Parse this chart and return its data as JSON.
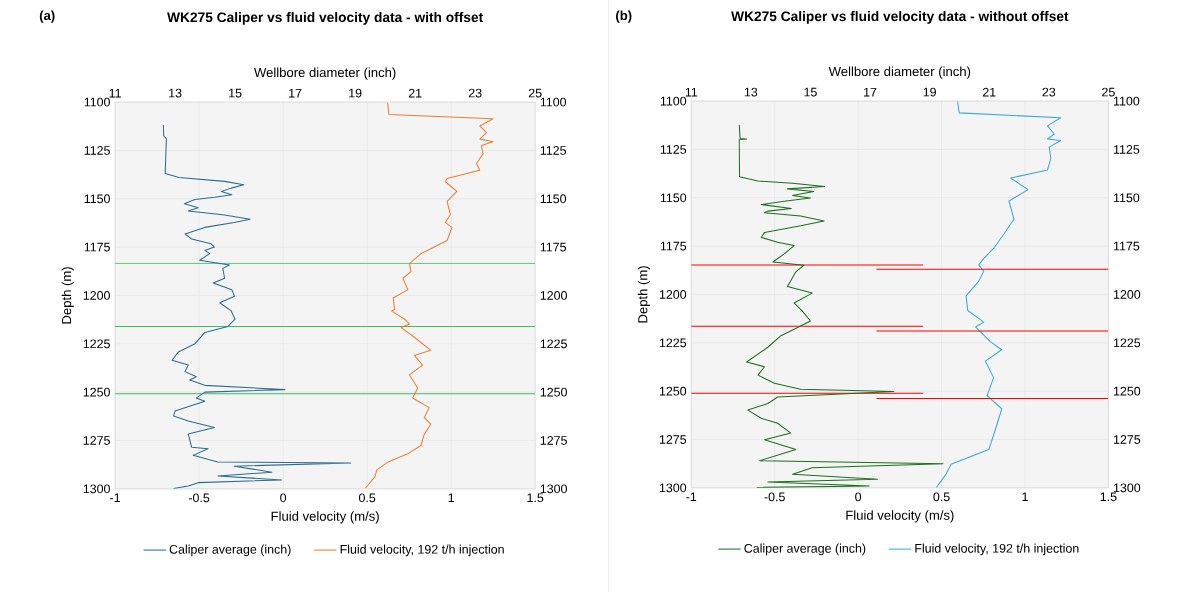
{
  "chart_data": [
    {
      "type": "line",
      "title": "WK275 Caliper vs fluid velocity data - with offset",
      "xlabel": "Fluid velocity (m/s)",
      "x2label": "Wellbore diameter (inch)",
      "ylabel": "Depth (m)",
      "xlim": [
        -1,
        1.5
      ],
      "xticks": [
        -1,
        -0.5,
        0,
        0.5,
        1,
        1.5
      ],
      "x2lim": [
        11,
        25
      ],
      "x2ticks": [
        11,
        13,
        15,
        17,
        19,
        21,
        23,
        25
      ],
      "ylim": [
        1300,
        1100
      ],
      "yticks": [
        1100,
        1125,
        1150,
        1175,
        1200,
        1225,
        1250,
        1275,
        1300
      ],
      "y2lim": [
        1300,
        1100
      ],
      "y2ticks": [
        1100,
        1125,
        1150,
        1175,
        1200,
        1225,
        1250,
        1275,
        1300
      ],
      "grid": true,
      "legend": "bottom",
      "annotations": [
        "(a)"
      ],
      "ref_lines": [
        {
          "axis": "y",
          "value": 1183.4,
          "color": "#3cbf62"
        },
        {
          "axis": "y",
          "value": 1216.1,
          "color": "#3cbf62"
        },
        {
          "axis": "y",
          "value": 1250.8,
          "color": "#3cbf62"
        }
      ],
      "series": [
        {
          "name": "Caliper average (inch)",
          "color": "#2f6b8f",
          "axis": "x2",
          "x": [
            12.61,
            12.62,
            12.71,
            12.67,
            13.13,
            14.65,
            15.29,
            14.87,
            14.54,
            14.89,
            14.32,
            13.66,
            13.31,
            13.77,
            13.44,
            14.65,
            15.5,
            14.97,
            13.99,
            13.33,
            13.55,
            14.2,
            14.31,
            13.99,
            14.15,
            13.82,
            14.81,
            14.59,
            14.65,
            14.27,
            14.89,
            14.98,
            14.49,
            14.87,
            15.0,
            14.76,
            13.99,
            13.66,
            13.11,
            12.9,
            13.44,
            13.33,
            13.71,
            13.49,
            13.99,
            16.66,
            13.99,
            13.71,
            13.99,
            13.0,
            12.95,
            13.44,
            14.31,
            13.44,
            13.55,
            14.1,
            13.6,
            14.42,
            18.85,
            14.97,
            16.23,
            14.43,
            16.55,
            13.77,
            13.44,
            12.95
          ],
          "values": [
            1111.8,
            1117.4,
            1119,
            1136.9,
            1139,
            1141,
            1142.8,
            1144.5,
            1146.2,
            1147.9,
            1149.2,
            1150.4,
            1152.6,
            1154.6,
            1156.3,
            1158.4,
            1160.6,
            1162.3,
            1164.8,
            1168.2,
            1170.8,
            1173.3,
            1175,
            1176.7,
            1178.4,
            1181.8,
            1184.3,
            1186,
            1191.1,
            1193.6,
            1197,
            1200.4,
            1203.8,
            1208,
            1212.3,
            1216,
            1219.1,
            1225,
            1229.2,
            1233.5,
            1236,
            1239.4,
            1242,
            1243.7,
            1246.5,
            1248.7,
            1250,
            1253,
            1254.7,
            1259.8,
            1262.3,
            1264.9,
            1268.3,
            1271.7,
            1278.5,
            1279.3,
            1282.7,
            1286.1,
            1286.6,
            1288.3,
            1291.4,
            1293.4,
            1295.4,
            1296.8,
            1298.5,
            1299.8
          ]
        },
        {
          "name": "Fluid velocity, 192 t/h injection",
          "color": "#ed7d31",
          "x": [
            0.622,
            0.63,
            1.249,
            1.171,
            1.21,
            1.171,
            1.249,
            1.18,
            1.19,
            1.151,
            1.17,
            0.976,
            0.966,
            1.034,
            0.976,
            0.995,
            0.966,
            1.005,
            0.976,
            0.917,
            0.82,
            0.752,
            0.761,
            0.713,
            0.742,
            0.655,
            0.664,
            0.645,
            0.723,
            0.752,
            0.703,
            0.781,
            0.879,
            0.781,
            0.83,
            0.752,
            0.801,
            0.771,
            0.869,
            0.84,
            0.879,
            0.84,
            0.82,
            0.742,
            0.625,
            0.557,
            0.547,
            0.489
          ],
          "values": [
            1100.5,
            1106.4,
            1108.6,
            1112.4,
            1115.8,
            1119.1,
            1120.5,
            1122.5,
            1126.8,
            1131.8,
            1135.2,
            1139.5,
            1141.2,
            1146.2,
            1151.3,
            1158.1,
            1162.3,
            1164.8,
            1171.6,
            1174.2,
            1178.4,
            1183.5,
            1187.7,
            1191.1,
            1197,
            1201.3,
            1207.2,
            1208,
            1212.3,
            1214.8,
            1216.6,
            1221.6,
            1228.4,
            1231,
            1236,
            1241.1,
            1247.9,
            1253,
            1258,
            1263.2,
            1266.6,
            1271.7,
            1277.6,
            1281.9,
            1286.1,
            1290.3,
            1293.7,
            1299.7
          ]
        }
      ]
    },
    {
      "type": "line",
      "title": "WK275 Caliper vs fluid velocity data - without offset",
      "xlabel": "Fluid velocity (m/s)",
      "x2label": "Wellbore diameter (inch)",
      "ylabel": "Depth (m)",
      "xlim": [
        -1,
        1.5
      ],
      "xticks": [
        -1,
        -0.5,
        0,
        0.5,
        1,
        1.5
      ],
      "x2lim": [
        11,
        25
      ],
      "x2ticks": [
        11,
        13,
        15,
        17,
        19,
        21,
        23,
        25
      ],
      "ylim": [
        1300,
        1100
      ],
      "yticks": [
        1100,
        1125,
        1150,
        1175,
        1200,
        1225,
        1250,
        1275,
        1300
      ],
      "y2lim": [
        1300,
        1100
      ],
      "y2ticks": [
        1100,
        1125,
        1150,
        1175,
        1200,
        1225,
        1250,
        1275,
        1300
      ],
      "grid": true,
      "legend": "bottom",
      "annotations": [
        "(b)"
      ],
      "series": [
        {
          "name": "Caliper average (inch)",
          "color": "#1f6e1f",
          "axis": "x2",
          "x": [
            12.61,
            12.64,
            12.86,
            12.61,
            12.62,
            13.24,
            14.4,
            15.47,
            14.23,
            15.11,
            14.4,
            15.0,
            14.12,
            13.35,
            14.36,
            13.57,
            13.46,
            14.67,
            15.46,
            14.67,
            13.46,
            13.35,
            13.9,
            14.45,
            14.12,
            13.74,
            14.78,
            14.51,
            14.23,
            15.06,
            14.45,
            14.73,
            15.0,
            14.67,
            14.01,
            13.57,
            12.86,
            13.46,
            13.24,
            13.79,
            14.67,
            17.8,
            13.9,
            13.57,
            12.9,
            13.35,
            13.9,
            14.34,
            13.46,
            14.51,
            13.3,
            19.45,
            15.06,
            14.4,
            17.25,
            13.57,
            16.97,
            13.2
          ],
          "values": [
            1112.3,
            1119.3,
            1119.6,
            1120,
            1139.1,
            1141.3,
            1142.5,
            1144.2,
            1145.4,
            1146.7,
            1148.8,
            1150.1,
            1151.8,
            1153.5,
            1155.5,
            1156.9,
            1157.7,
            1159.4,
            1162,
            1164.5,
            1167.9,
            1170.5,
            1173,
            1174.7,
            1179,
            1183.2,
            1184.9,
            1188.3,
            1195.9,
            1199.3,
            1204.4,
            1208.6,
            1213.7,
            1216.3,
            1221.3,
            1227.3,
            1234.9,
            1237.4,
            1241.7,
            1245.9,
            1249,
            1250.2,
            1253,
            1256.4,
            1259.8,
            1264,
            1266.6,
            1271.7,
            1275.1,
            1280.2,
            1286,
            1287.5,
            1289.6,
            1293,
            1295.6,
            1297,
            1299,
            1299.8
          ]
        },
        {
          "name": "Fluid velocity, 192 t/h injection",
          "color": "#3aa8d8",
          "x": [
            0.596,
            0.606,
            1.214,
            1.135,
            1.175,
            1.135,
            1.214,
            1.145,
            1.155,
            1.135,
            0.914,
            1.018,
            0.904,
            0.934,
            0.875,
            0.812,
            0.753,
            0.723,
            0.753,
            0.723,
            0.647,
            0.657,
            0.753,
            0.704,
            0.792,
            0.86,
            0.763,
            0.812,
            0.773,
            0.861,
            0.822,
            0.783,
            0.557,
            0.527,
            0.469
          ],
          "values": [
            1100.2,
            1106.1,
            1108.6,
            1112.8,
            1117,
            1119.6,
            1120.4,
            1123.8,
            1129.7,
            1135.6,
            1139.8,
            1145.8,
            1151.7,
            1161,
            1168.6,
            1176.2,
            1181.3,
            1184.7,
            1188,
            1193.1,
            1200.7,
            1208.3,
            1214.3,
            1216.8,
            1224.4,
            1228.6,
            1234.5,
            1243,
            1252.3,
            1259.1,
            1270.1,
            1280.2,
            1287.8,
            1292.9,
            1299.8
          ]
        },
        {
          "color": "#ff0000",
          "x": [
            -1,
            0.39
          ],
          "values": [
            1184.8,
            1184.8
          ]
        },
        {
          "color": "#ff0000",
          "x": [
            0.11,
            1.5
          ],
          "values": [
            1187,
            1187
          ]
        },
        {
          "color": "#ff0000",
          "x": [
            -1,
            0.39
          ],
          "values": [
            1216.4,
            1216.4
          ]
        },
        {
          "color": "#ff0000",
          "x": [
            0.11,
            1.5
          ],
          "values": [
            1218.9,
            1218.9
          ]
        },
        {
          "color": "#ff0000",
          "x": [
            -1,
            0.39
          ],
          "values": [
            1251.1,
            1251.1
          ]
        },
        {
          "color": "#ff0000",
          "x": [
            0.11,
            1.5
          ],
          "values": [
            1253.8,
            1253.8
          ]
        }
      ]
    }
  ]
}
